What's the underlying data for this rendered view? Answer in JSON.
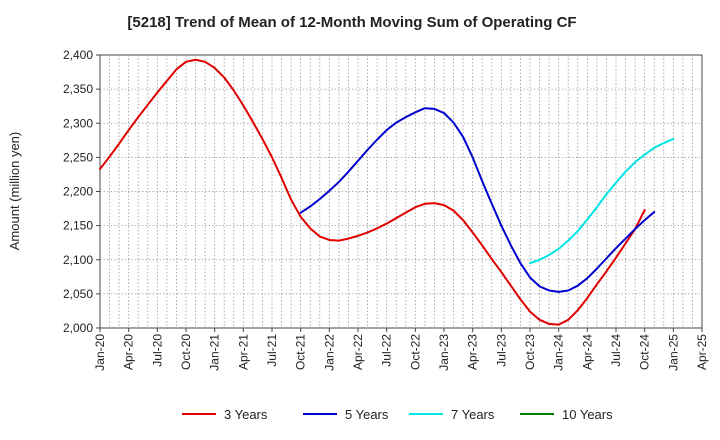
{
  "chart_data": {
    "type": "line",
    "title": "[5218]  Trend of Mean of 12-Month Moving Sum of Operating CF",
    "xlabel": "",
    "ylabel": "Amount (million yen)",
    "ylim": [
      2000,
      2400
    ],
    "yticks": [
      2000,
      2050,
      2100,
      2150,
      2200,
      2250,
      2300,
      2350,
      2400
    ],
    "ytick_labels": [
      "2,000",
      "2,050",
      "2,100",
      "2,150",
      "2,200",
      "2,250",
      "2,300",
      "2,350",
      "2,400"
    ],
    "x_start": "Jan-20",
    "x_months_total": 63,
    "x_tick_labels": [
      "Jan-20",
      "Apr-20",
      "Jul-20",
      "Oct-20",
      "Jan-21",
      "Apr-21",
      "Jul-21",
      "Oct-21",
      "Jan-22",
      "Apr-22",
      "Jul-22",
      "Oct-22",
      "Jan-23",
      "Apr-23",
      "Jul-23",
      "Oct-23",
      "Jan-24",
      "Apr-24",
      "Jul-24",
      "Oct-24",
      "Jan-25",
      "Apr-25"
    ],
    "grid": true,
    "legend_position": "bottom",
    "series": [
      {
        "name": "3 Years",
        "color": "#e00000",
        "start_month_index": 0,
        "values": [
          2233,
          2251,
          2270,
          2290,
          2309,
          2327,
          2345,
          2362,
          2379,
          2390,
          2393,
          2390,
          2381,
          2367,
          2348,
          2326,
          2302,
          2277,
          2250,
          2220,
          2188,
          2163,
          2146,
          2134,
          2129,
          2128,
          2131,
          2135,
          2140,
          2146,
          2153,
          2161,
          2169,
          2177,
          2182,
          2183,
          2180,
          2172,
          2158,
          2140,
          2121,
          2101,
          2082,
          2062,
          2042,
          2024,
          2012,
          2006,
          2005,
          2012,
          2026,
          2044,
          2064,
          2083,
          2103,
          2124,
          2145,
          2173
        ]
      },
      {
        "name": "5 Years",
        "color": "#0000cc",
        "start_month_index": 21,
        "values": [
          2169,
          2178,
          2189,
          2201,
          2214,
          2229,
          2245,
          2261,
          2276,
          2290,
          2301,
          2309,
          2316,
          2322,
          2321,
          2315,
          2301,
          2280,
          2250,
          2215,
          2182,
          2150,
          2121,
          2095,
          2074,
          2061,
          2055,
          2053,
          2055,
          2062,
          2073,
          2087,
          2102,
          2117,
          2131,
          2145,
          2158,
          2170
        ]
      },
      {
        "name": "7 Years",
        "color": "#00e5e5",
        "start_month_index": 45,
        "values": [
          2095,
          2100,
          2107,
          2116,
          2128,
          2142,
          2159,
          2177,
          2196,
          2213,
          2229,
          2243,
          2254,
          2264,
          2271,
          2277
        ]
      },
      {
        "name": "10 Years",
        "color": "#008000",
        "start_month_index": 0,
        "values": []
      }
    ]
  }
}
